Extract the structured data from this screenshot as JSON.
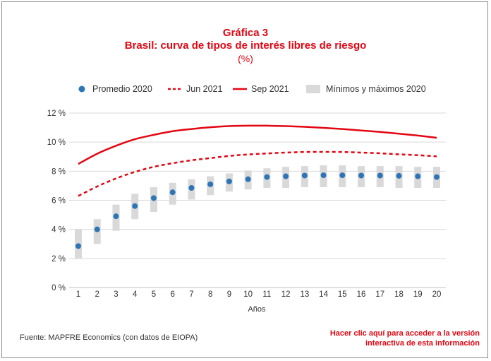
{
  "header": {
    "title": "Gráfica 3",
    "subtitle": "Brasil: curva de tipos de interés libres de riesgo",
    "unit": "(%)"
  },
  "colors": {
    "promedio": "#2e75b6",
    "curves": "#e30613",
    "range": "#d9d9d9",
    "gridline": "#d9d9d9",
    "text": "#333333"
  },
  "chart_data": {
    "type": "line",
    "xlabel": "Años",
    "ylabel": "",
    "x": [
      1,
      2,
      3,
      4,
      5,
      6,
      7,
      8,
      9,
      10,
      11,
      12,
      13,
      14,
      15,
      16,
      17,
      18,
      19,
      20
    ],
    "ylim": [
      0,
      12
    ],
    "yticks": [
      0,
      2,
      4,
      6,
      8,
      10,
      12
    ],
    "ytick_labels": [
      "0 %",
      "2 %",
      "4 %",
      "6 %",
      "8 %",
      "10 %",
      "12 %"
    ],
    "grid": true,
    "legend_position": "top",
    "series": [
      {
        "name": "Promedio 2020",
        "style": "markers",
        "values": [
          2.85,
          4.0,
          4.9,
          5.6,
          6.15,
          6.55,
          6.85,
          7.1,
          7.3,
          7.45,
          7.6,
          7.65,
          7.7,
          7.72,
          7.72,
          7.7,
          7.7,
          7.68,
          7.65,
          7.6
        ]
      },
      {
        "name": "Jun 2021",
        "style": "dashed",
        "values": [
          6.3,
          6.95,
          7.5,
          7.95,
          8.3,
          8.55,
          8.75,
          8.9,
          9.05,
          9.15,
          9.22,
          9.28,
          9.32,
          9.33,
          9.32,
          9.28,
          9.23,
          9.16,
          9.1,
          9.02
        ]
      },
      {
        "name": "Sep 2021",
        "style": "solid",
        "values": [
          8.5,
          9.2,
          9.75,
          10.2,
          10.5,
          10.75,
          10.9,
          11.02,
          11.1,
          11.13,
          11.13,
          11.1,
          11.05,
          10.98,
          10.9,
          10.8,
          10.7,
          10.58,
          10.45,
          10.3
        ]
      },
      {
        "name": "Mínimos y máximos 2020",
        "style": "range",
        "min": [
          2.0,
          3.0,
          3.9,
          4.7,
          5.2,
          5.7,
          6.05,
          6.35,
          6.6,
          6.75,
          6.85,
          6.85,
          6.9,
          6.9,
          6.9,
          6.9,
          6.9,
          6.85,
          6.85,
          6.85
        ],
        "max": [
          4.0,
          4.7,
          5.7,
          6.45,
          6.9,
          7.2,
          7.45,
          7.65,
          7.85,
          8.05,
          8.2,
          8.3,
          8.35,
          8.4,
          8.4,
          8.35,
          8.35,
          8.35,
          8.3,
          8.3
        ]
      }
    ]
  },
  "footer": {
    "source": "Fuente: MAPFRE Economics (con datos de EIOPA)",
    "link_line1": "Hacer clic aquí para acceder a la versión",
    "link_line2": "interactiva de esta información"
  }
}
